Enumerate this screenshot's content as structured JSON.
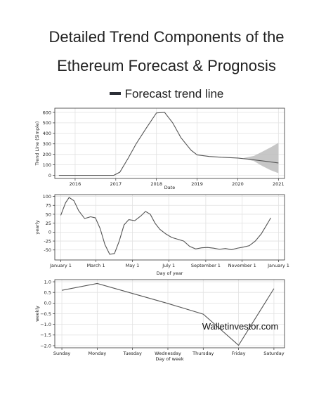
{
  "title_line1": "Detailed Trend Components of the",
  "title_line2": "Ethereum Forecast & Prognosis",
  "legend_label": "Forecast trend line",
  "watermark": "Walletinvestor.com",
  "colors": {
    "line": "#555555",
    "band": "#bdbdbd",
    "grid": "#e2e2e2",
    "legend": "#2b2f36"
  },
  "chart_data": [
    {
      "type": "line",
      "name": "trend",
      "ylabel": "Trend Line (Simple)",
      "xlabel": "Date",
      "xlim": [
        2015.5,
        2021.15
      ],
      "ylim": [
        -30,
        640
      ],
      "xticks": [
        2016,
        2017,
        2018,
        2019,
        2020,
        2021
      ],
      "xtick_labels": [
        "2016",
        "2017",
        "2018",
        "2019",
        "2020",
        "2021"
      ],
      "yticks": [
        0,
        100,
        200,
        300,
        400,
        500,
        600
      ],
      "grid": true,
      "points": [
        [
          2015.6,
          0
        ],
        [
          2016.0,
          0
        ],
        [
          2016.5,
          0
        ],
        [
          2016.95,
          0
        ],
        [
          2017.1,
          30
        ],
        [
          2017.3,
          160
        ],
        [
          2017.5,
          300
        ],
        [
          2017.75,
          450
        ],
        [
          2018.0,
          595
        ],
        [
          2018.2,
          600
        ],
        [
          2018.4,
          500
        ],
        [
          2018.6,
          360
        ],
        [
          2018.85,
          240
        ],
        [
          2019.0,
          195
        ],
        [
          2019.3,
          180
        ],
        [
          2019.6,
          172
        ],
        [
          2020.0,
          165
        ],
        [
          2020.3,
          152
        ],
        [
          2020.6,
          138
        ],
        [
          2021.0,
          118
        ]
      ],
      "band": {
        "x": [
          2020.15,
          2020.4,
          2020.6,
          2020.8,
          2021.0
        ],
        "upper": [
          165,
          185,
          225,
          265,
          310
        ],
        "lower": [
          160,
          135,
          90,
          50,
          20
        ]
      }
    },
    {
      "type": "line",
      "name": "yearly",
      "ylabel": "yearly",
      "xlabel": "Day of year",
      "xlim": [
        -10,
        375
      ],
      "ylim": [
        -78,
        105
      ],
      "xticks": [
        0,
        59,
        120,
        181,
        243,
        304,
        365
      ],
      "xtick_labels": [
        "January 1",
        "March 1",
        "May 1",
        "July 1",
        "September 1",
        "November 1",
        "January 1"
      ],
      "yticks": [
        -50,
        -25,
        0,
        25,
        50,
        75,
        100
      ],
      "grid": true,
      "points": [
        [
          0,
          47
        ],
        [
          8,
          82
        ],
        [
          14,
          97
        ],
        [
          22,
          88
        ],
        [
          30,
          60
        ],
        [
          40,
          38
        ],
        [
          50,
          43
        ],
        [
          58,
          40
        ],
        [
          66,
          10
        ],
        [
          74,
          -35
        ],
        [
          82,
          -62
        ],
        [
          90,
          -60
        ],
        [
          98,
          -25
        ],
        [
          106,
          20
        ],
        [
          114,
          35
        ],
        [
          124,
          32
        ],
        [
          134,
          45
        ],
        [
          142,
          58
        ],
        [
          150,
          50
        ],
        [
          158,
          25
        ],
        [
          166,
          8
        ],
        [
          176,
          -5
        ],
        [
          186,
          -15
        ],
        [
          196,
          -20
        ],
        [
          206,
          -25
        ],
        [
          216,
          -40
        ],
        [
          226,
          -47
        ],
        [
          236,
          -44
        ],
        [
          246,
          -43
        ],
        [
          256,
          -45
        ],
        [
          266,
          -48
        ],
        [
          276,
          -46
        ],
        [
          286,
          -49
        ],
        [
          296,
          -45
        ],
        [
          306,
          -42
        ],
        [
          316,
          -38
        ],
        [
          326,
          -25
        ],
        [
          336,
          -5
        ],
        [
          345,
          20
        ],
        [
          352,
          40
        ]
      ]
    },
    {
      "type": "line",
      "name": "weekly",
      "ylabel": "weekly",
      "xlabel": "Day of week",
      "xlim": [
        -0.2,
        6.3
      ],
      "ylim": [
        -2.1,
        1.1
      ],
      "xticks": [
        0,
        1,
        2,
        3,
        4,
        5,
        6
      ],
      "xtick_labels": [
        "Sunday",
        "Monday",
        "Tuesday",
        "Wednesday",
        "Thursday",
        "Friday",
        "Saturday"
      ],
      "yticks": [
        -2.0,
        -1.5,
        -1.0,
        -0.5,
        0.0,
        0.5,
        1.0
      ],
      "ytick_labels": [
        "−2.0",
        "−1.5",
        "−1.0",
        "−0.5",
        "0.0",
        "0.5",
        "1.0"
      ],
      "grid": true,
      "points": [
        [
          0,
          0.6
        ],
        [
          1,
          0.92
        ],
        [
          2,
          0.45
        ],
        [
          3,
          -0.02
        ],
        [
          4,
          -0.52
        ],
        [
          5,
          -1.98
        ],
        [
          6,
          0.68
        ]
      ]
    }
  ]
}
